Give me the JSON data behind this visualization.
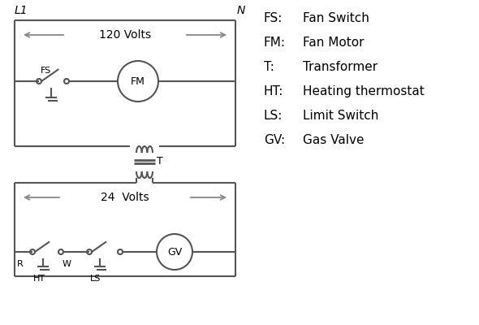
{
  "bg_color": "#ffffff",
  "line_color": "#555555",
  "arrow_color": "#888888",
  "legend_items": [
    [
      "FS:",
      "Fan Switch"
    ],
    [
      "FM:",
      "Fan Motor"
    ],
    [
      "T:",
      "Transformer"
    ],
    [
      "HT:",
      "Heating thermostat"
    ],
    [
      "LS:",
      "Limit Switch"
    ],
    [
      "GV:",
      "Gas Valve"
    ]
  ],
  "label_L1": "L1",
  "label_N": "N",
  "label_120V": "120 Volts",
  "label_24V": "24  Volts",
  "label_T": "T",
  "label_FS": "FS",
  "label_FM": "FM",
  "label_GV": "GV",
  "label_R": "R",
  "label_W": "W",
  "label_HT": "HT",
  "label_LS": "LS"
}
